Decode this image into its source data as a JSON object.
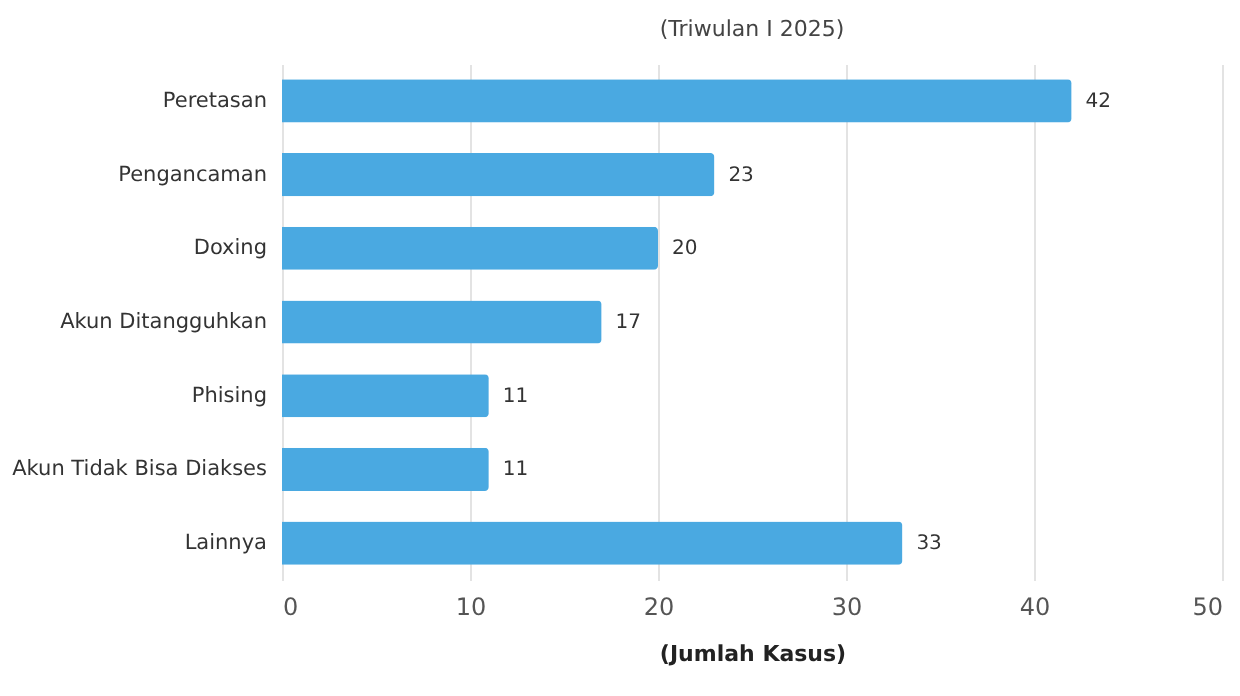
{
  "chart_data": {
    "type": "bar",
    "orientation": "horizontal",
    "subtitle": "(Triwulan I 2025)",
    "xlabel": "(Jumlah Kasus)",
    "categories": [
      "Peretasan",
      "Pengancaman",
      "Doxing",
      "Akun Ditangguhkan",
      "Phising",
      "Akun Tidak Bisa Diakses",
      "Lainnya"
    ],
    "values": [
      42,
      23,
      20,
      17,
      11,
      11,
      33
    ],
    "color": "#4aa9e1",
    "xlim": [
      0,
      50
    ],
    "xticks": [
      0,
      10,
      20,
      30,
      40,
      50
    ],
    "grid": "x",
    "data_labels": true
  }
}
